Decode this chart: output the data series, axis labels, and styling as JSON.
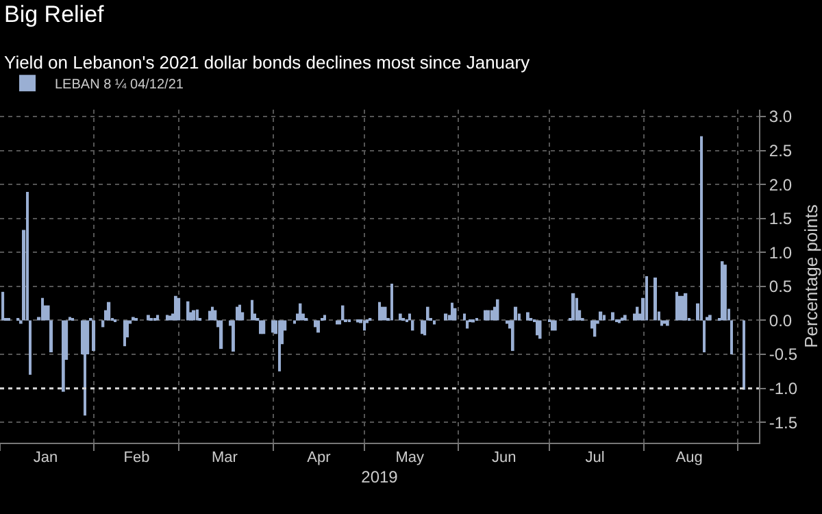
{
  "chart_data": {
    "type": "bar",
    "title": "Big Relief",
    "subtitle": "Yield on Lebanon's 2021 dollar bonds declines most since January",
    "xlabel": "2019",
    "ylabel": "Percentage points",
    "x": [
      "2019-01-02",
      "2019-01-03",
      "2019-01-04",
      "2019-01-07",
      "2019-01-08",
      "2019-01-09",
      "2019-01-10",
      "2019-01-11",
      "2019-01-14",
      "2019-01-15",
      "2019-01-16",
      "2019-01-17",
      "2019-01-18",
      "2019-01-22",
      "2019-01-23",
      "2019-01-24",
      "2019-01-25",
      "2019-01-28",
      "2019-01-29",
      "2019-01-30",
      "2019-01-31",
      "2019-02-01",
      "2019-02-04",
      "2019-02-05",
      "2019-02-06",
      "2019-02-07",
      "2019-02-08",
      "2019-02-11",
      "2019-02-12",
      "2019-02-13",
      "2019-02-14",
      "2019-02-15",
      "2019-02-19",
      "2019-02-20",
      "2019-02-21",
      "2019-02-22",
      "2019-02-25",
      "2019-02-26",
      "2019-02-27",
      "2019-02-28",
      "2019-03-01",
      "2019-03-04",
      "2019-03-05",
      "2019-03-06",
      "2019-03-07",
      "2019-03-08",
      "2019-03-11",
      "2019-03-12",
      "2019-03-13",
      "2019-03-14",
      "2019-03-15",
      "2019-03-18",
      "2019-03-19",
      "2019-03-20",
      "2019-03-21",
      "2019-03-22",
      "2019-03-25",
      "2019-03-26",
      "2019-03-27",
      "2019-03-28",
      "2019-03-29",
      "2019-04-01",
      "2019-04-02",
      "2019-04-03",
      "2019-04-04",
      "2019-04-05",
      "2019-04-08",
      "2019-04-09",
      "2019-04-10",
      "2019-04-11",
      "2019-04-12",
      "2019-04-15",
      "2019-04-16",
      "2019-04-17",
      "2019-04-18",
      "2019-04-22",
      "2019-04-23",
      "2019-04-24",
      "2019-04-25",
      "2019-04-26",
      "2019-04-29",
      "2019-04-30",
      "2019-05-01",
      "2019-05-02",
      "2019-05-03",
      "2019-05-06",
      "2019-05-07",
      "2019-05-08",
      "2019-05-09",
      "2019-05-10",
      "2019-05-13",
      "2019-05-14",
      "2019-05-15",
      "2019-05-16",
      "2019-05-17",
      "2019-05-20",
      "2019-05-21",
      "2019-05-22",
      "2019-05-23",
      "2019-05-24",
      "2019-05-28",
      "2019-05-29",
      "2019-05-30",
      "2019-05-31",
      "2019-06-03",
      "2019-06-04",
      "2019-06-05",
      "2019-06-06",
      "2019-06-07",
      "2019-06-10",
      "2019-06-11",
      "2019-06-12",
      "2019-06-13",
      "2019-06-14",
      "2019-06-17",
      "2019-06-18",
      "2019-06-19",
      "2019-06-20",
      "2019-06-21",
      "2019-06-24",
      "2019-06-25",
      "2019-06-26",
      "2019-06-27",
      "2019-06-28",
      "2019-07-01",
      "2019-07-02",
      "2019-07-03",
      "2019-07-08",
      "2019-07-09",
      "2019-07-10",
      "2019-07-11",
      "2019-07-12",
      "2019-07-15",
      "2019-07-16",
      "2019-07-17",
      "2019-07-18",
      "2019-07-19",
      "2019-07-22",
      "2019-07-23",
      "2019-07-24",
      "2019-07-25",
      "2019-07-26",
      "2019-07-29",
      "2019-07-30",
      "2019-07-31",
      "2019-08-01",
      "2019-08-02",
      "2019-08-05",
      "2019-08-06",
      "2019-08-07",
      "2019-08-08",
      "2019-08-09",
      "2019-08-12",
      "2019-08-13",
      "2019-08-14",
      "2019-08-15",
      "2019-08-16",
      "2019-08-19",
      "2019-08-20",
      "2019-08-21",
      "2019-08-22",
      "2019-08-23",
      "2019-08-26",
      "2019-08-27",
      "2019-08-28",
      "2019-08-29",
      "2019-08-30",
      "2019-09-03"
    ],
    "series": [
      {
        "name": "LEBAN 8 ¼ 04/12/21",
        "color": "#9aafd3",
        "values": [
          0.42,
          0.02,
          0.03,
          0.03,
          -0.05,
          1.33,
          1.89,
          -0.8,
          0.05,
          0.33,
          0.22,
          0.22,
          -0.47,
          -1.05,
          -0.58,
          0.05,
          0.02,
          -0.5,
          -1.4,
          -0.5,
          0.02,
          -0.45,
          -0.1,
          0.15,
          0.27,
          0.03,
          -0.02,
          -0.38,
          -0.25,
          -0.05,
          0.05,
          0.02,
          0.08,
          0.02,
          0.03,
          0.08,
          0.08,
          0.07,
          0.1,
          0.36,
          0.33,
          0.28,
          0.12,
          0.15,
          0.16,
          0.02,
          0.14,
          0.2,
          0.15,
          -0.1,
          -0.42,
          -0.08,
          -0.46,
          0.2,
          0.23,
          0.12,
          0.3,
          0.1,
          0.02,
          -0.2,
          -0.2,
          -0.18,
          -0.2,
          -0.75,
          -0.35,
          -0.15,
          -0.05,
          0.1,
          0.25,
          0.1,
          0.02,
          -0.1,
          -0.18,
          0.02,
          0.08,
          -0.06,
          -0.06,
          0.22,
          -0.02,
          -0.02,
          -0.03,
          -0.04,
          -0.15,
          -0.04,
          0.02,
          0.27,
          0.2,
          0.2,
          0.02,
          0.54,
          0.1,
          0.02,
          -0.02,
          0.1,
          -0.15,
          -0.2,
          -0.22,
          0.2,
          0.02,
          -0.06,
          0.1,
          0.08,
          0.26,
          0.18,
          0.1,
          -0.12,
          -0.02,
          -0.03,
          0.02,
          0.15,
          0.15,
          0.15,
          0.2,
          0.31,
          -0.05,
          -0.12,
          -0.45,
          0.2,
          0.1,
          0.12,
          0.03,
          -0.02,
          -0.22,
          -0.27,
          -0.02,
          -0.15,
          -0.15,
          0.02,
          0.4,
          0.33,
          0.15,
          0.02,
          -0.12,
          -0.24,
          -0.05,
          0.13,
          0.08,
          0.12,
          -0.02,
          -0.04,
          0.04,
          0.08,
          0.1,
          0.2,
          0.1,
          0.33,
          0.65,
          0.63,
          0.13,
          -0.08,
          -0.05,
          -0.08,
          0.42,
          0.36,
          0.36,
          0.4,
          0.03,
          0.25,
          2.71,
          -0.47,
          0.05,
          0.08,
          0.02,
          0.87,
          0.82,
          0.17,
          -0.5,
          -1.02
        ]
      }
    ],
    "xlim": [
      "2019-01-01",
      "2019-09-08"
    ],
    "xticks": [
      {
        "value": "2019-01-16",
        "label": "Jan"
      },
      {
        "value": "2019-02-15",
        "label": "Feb"
      },
      {
        "value": "2019-03-16",
        "label": "Mar"
      },
      {
        "value": "2019-04-16",
        "label": "Apr"
      },
      {
        "value": "2019-05-16",
        "label": "May"
      },
      {
        "value": "2019-06-16",
        "label": "Jun"
      },
      {
        "value": "2019-07-16",
        "label": "Jul"
      },
      {
        "value": "2019-08-16",
        "label": "Aug"
      }
    ],
    "ylim": [
      -1.8,
      3.1
    ],
    "yticks": [
      {
        "value": -1.5,
        "label": "-1.5"
      },
      {
        "value": -1,
        "label": "-1.0"
      },
      {
        "value": -0.5,
        "label": "-0.5"
      },
      {
        "value": 0,
        "label": "0.0"
      },
      {
        "value": 0.5,
        "label": "0.5"
      },
      {
        "value": 1,
        "label": "1.0"
      },
      {
        "value": 1.5,
        "label": "1.5"
      },
      {
        "value": 2,
        "label": "2.0"
      },
      {
        "value": 2.5,
        "label": "2.5"
      },
      {
        "value": 3,
        "label": "3.0"
      }
    ],
    "ref_lines": [
      {
        "axis": "y",
        "value": -1,
        "color": "#d9d9d9",
        "line_style": "dotted"
      }
    ],
    "grid": true,
    "legend": "top left"
  }
}
